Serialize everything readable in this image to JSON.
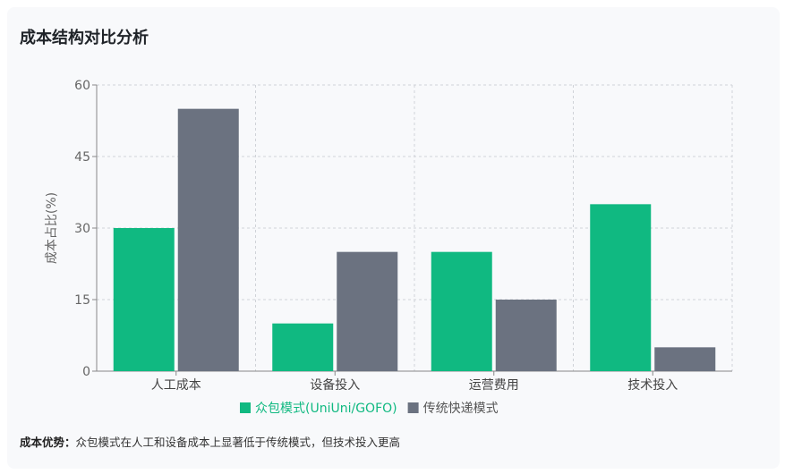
{
  "title": "成本结构对比分析",
  "note": {
    "label": "成本优势：",
    "text": "众包模式在人工和设备成本上显著低于传统模式，但技术投入更高"
  },
  "colors": {
    "crowd": "#10b981",
    "traditional": "#6b7280"
  },
  "chart_data": {
    "type": "bar",
    "ylabel": "成本占比(%)",
    "categories": [
      "人工成本",
      "设备投入",
      "运营费用",
      "技术投入"
    ],
    "yticks": [
      0,
      15,
      30,
      45,
      60
    ],
    "ylim": [
      0,
      60
    ],
    "grid": true,
    "legend_position": "bottom",
    "series": [
      {
        "name": "众包模式(UniUni/GOFO)",
        "values": [
          30,
          10,
          25,
          35
        ],
        "color": "#10b981"
      },
      {
        "name": "传统快递模式",
        "values": [
          55,
          25,
          15,
          5
        ],
        "color": "#6b7280"
      }
    ]
  }
}
